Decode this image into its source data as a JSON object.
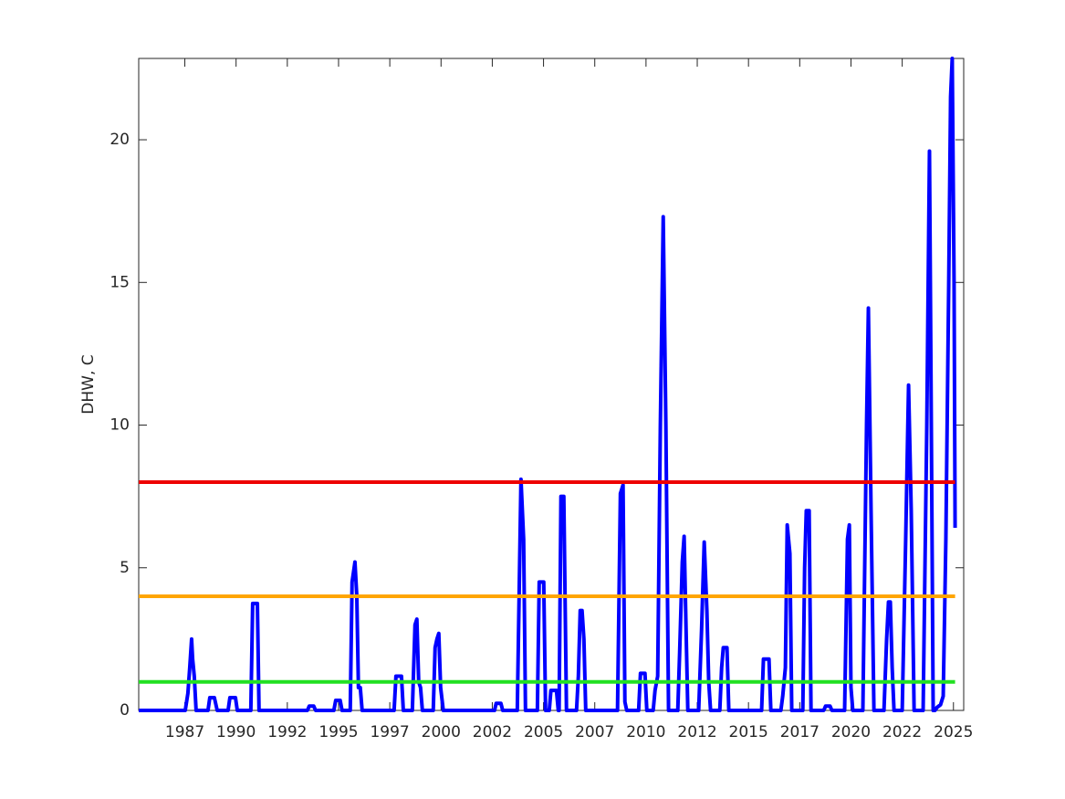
{
  "chart_data": {
    "type": "line",
    "ylabel": "DHW, C",
    "xlim": [
      1985.25,
      2025.5
    ],
    "ylim": [
      0,
      22.85
    ],
    "xticks": [
      {
        "value": 1987.5,
        "label": "1987"
      },
      {
        "value": 1990,
        "label": "1990"
      },
      {
        "value": 1992.5,
        "label": "1992"
      },
      {
        "value": 1995,
        "label": "1995"
      },
      {
        "value": 1997.5,
        "label": "1997"
      },
      {
        "value": 2000,
        "label": "2000"
      },
      {
        "value": 2002.5,
        "label": "2002"
      },
      {
        "value": 2005,
        "label": "2005"
      },
      {
        "value": 2007.5,
        "label": "2007"
      },
      {
        "value": 2010,
        "label": "2010"
      },
      {
        "value": 2012.5,
        "label": "2012"
      },
      {
        "value": 2015,
        "label": "2015"
      },
      {
        "value": 2017.5,
        "label": "2017"
      },
      {
        "value": 2020,
        "label": "2020"
      },
      {
        "value": 2022.5,
        "label": "2022"
      },
      {
        "value": 2025,
        "label": "2025"
      }
    ],
    "yticks": [
      0,
      5,
      10,
      15,
      20
    ],
    "x": [
      1985.25,
      1987.52,
      1987.65,
      1987.74,
      1987.83,
      1987.88,
      1987.96,
      1988.05,
      1988.63,
      1988.72,
      1988.94,
      1989.08,
      1989.61,
      1989.7,
      1989.97,
      1990.06,
      1990.72,
      1990.81,
      1991.04,
      1991.12,
      1993.48,
      1993.57,
      1993.79,
      1993.88,
      1994.77,
      1994.86,
      1995.08,
      1995.17,
      1995.57,
      1995.66,
      1995.8,
      1995.89,
      1995.97,
      1996.06,
      1996.15,
      1997.71,
      1997.8,
      1998.07,
      1998.16,
      1998.6,
      1998.73,
      1998.82,
      1998.91,
      1999.0,
      1999.09,
      1999.62,
      1999.71,
      1999.8,
      1999.89,
      1999.98,
      2000.11,
      2002.61,
      2002.69,
      2002.92,
      2003.01,
      2003.72,
      2003.9,
      2004.03,
      2004.12,
      2004.7,
      2004.79,
      2005.01,
      2005.1,
      2005.28,
      2005.36,
      2005.63,
      2005.72,
      2005.76,
      2005.85,
      2005.99,
      2006.12,
      2006.61,
      2006.7,
      2006.79,
      2006.88,
      2006.97,
      2007.06,
      2008.61,
      2008.75,
      2008.88,
      2008.97,
      2009.06,
      2009.64,
      2009.73,
      2009.95,
      2010.04,
      2010.35,
      2010.44,
      2010.57,
      2010.7,
      2010.84,
      2010.97,
      2011.1,
      2011.55,
      2011.64,
      2011.77,
      2011.86,
      2011.95,
      2012.04,
      2012.57,
      2012.71,
      2012.84,
      2012.97,
      2013.06,
      2013.15,
      2013.6,
      2013.69,
      2013.77,
      2013.95,
      2014.04,
      2015.64,
      2015.73,
      2016.0,
      2016.09,
      2016.58,
      2016.67,
      2016.8,
      2016.89,
      2017.02,
      2017.11,
      2017.65,
      2017.74,
      2017.82,
      2017.96,
      2018.05,
      2018.67,
      2018.76,
      2018.98,
      2019.07,
      2019.69,
      2019.83,
      2019.92,
      2020.0,
      2020.09,
      2020.58,
      2020.76,
      2020.85,
      2020.98,
      2021.12,
      2021.61,
      2021.74,
      2021.83,
      2021.92,
      2022.01,
      2022.1,
      2022.5,
      2022.67,
      2022.81,
      2022.94,
      2023.08,
      2023.52,
      2023.7,
      2023.83,
      2023.92,
      2024.01,
      2024.1,
      2024.19,
      2024.37,
      2024.5,
      2024.63,
      2024.77,
      2024.86,
      2024.94,
      2025.03,
      2025.08
    ],
    "series": [
      {
        "color": "#0000ff",
        "values": [
          0,
          0,
          0.6,
          1.5,
          2.5,
          1.8,
          1.2,
          0,
          0,
          0.45,
          0.45,
          0,
          0,
          0.45,
          0.45,
          0,
          0,
          3.75,
          3.75,
          0,
          0,
          0.15,
          0.15,
          0,
          0,
          0.35,
          0.35,
          0,
          0,
          4.5,
          5.2,
          4,
          0.8,
          0.8,
          0,
          0,
          1.2,
          1.2,
          0,
          0,
          3,
          3.2,
          1,
          0.8,
          0,
          0,
          2.2,
          2.5,
          2.7,
          0.8,
          0,
          0,
          0.25,
          0.25,
          0,
          0,
          8.1,
          6,
          0,
          0,
          4.5,
          4.5,
          0,
          0,
          0.7,
          0.7,
          0,
          0,
          7.5,
          7.5,
          0,
          0,
          1.2,
          3.5,
          3.5,
          2.5,
          0,
          0,
          7.6,
          7.9,
          0.3,
          0,
          0,
          1.3,
          1.3,
          0,
          0,
          0.7,
          1.2,
          10,
          17.3,
          10,
          0,
          0,
          2,
          5.2,
          6.1,
          3,
          0,
          0,
          2.8,
          5.9,
          3.5,
          1,
          0,
          0,
          1.5,
          2.2,
          2.2,
          0,
          0,
          1.8,
          1.8,
          0,
          0,
          0.5,
          1.5,
          6.5,
          5.5,
          0,
          0,
          5,
          7,
          7,
          0,
          0,
          0.15,
          0.15,
          0,
          0,
          6,
          6.5,
          0.8,
          0,
          0,
          10,
          14.1,
          7,
          0,
          0,
          2.5,
          3.8,
          3.8,
          1.5,
          0,
          0,
          6,
          11.4,
          7,
          0,
          0,
          10,
          19.6,
          10,
          0,
          0,
          0.1,
          0.2,
          0.5,
          6,
          15,
          21.5,
          22.85,
          15,
          6.4
        ]
      }
    ],
    "hlines": [
      {
        "value": 8,
        "color": "#ee0000",
        "x": [
          1985.25,
          2025.08
        ]
      },
      {
        "value": 4,
        "color": "#ffa500",
        "x": [
          1985.25,
          2025.08
        ]
      },
      {
        "value": 1,
        "color": "#22e022",
        "x": [
          1985.25,
          2025.08
        ]
      }
    ]
  }
}
